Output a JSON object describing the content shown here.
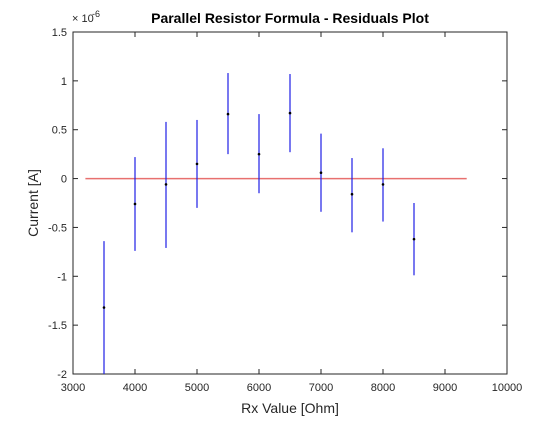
{
  "chart_data": {
    "type": "scatter",
    "title": "Parallel Resistor Formula - Residuals Plot",
    "xlabel": "Rx Value [Ohm]",
    "ylabel": "Current [A]",
    "y_exponent_base": "× 10",
    "y_exponent_power": "-6",
    "xlim": [
      3000,
      10000
    ],
    "ylim": [
      -2,
      1.5
    ],
    "y_scale_note": "y values in units of 1e-6 A",
    "x_ticks": [
      3000,
      4000,
      5000,
      6000,
      7000,
      8000,
      9000,
      10000
    ],
    "x_tick_labels": [
      "3000",
      "4000",
      "5000",
      "6000",
      "7000",
      "8000",
      "9000",
      "10000"
    ],
    "y_ticks": [
      -2,
      -1.5,
      -1,
      -0.5,
      0,
      0.5,
      1,
      1.5
    ],
    "y_tick_labels": [
      "-2",
      "-1.5",
      "-1",
      "-0.5",
      "0",
      "0.5",
      "1",
      "1.5"
    ],
    "grid": false,
    "reference_line": {
      "y": 0,
      "x_start": 3200,
      "x_end": 9350,
      "color": "#e8706f"
    },
    "errorbar_color": "#1f1fe6",
    "point_color": "#000000",
    "series": [
      {
        "x": [
          3500,
          4000,
          4500,
          5000,
          5500,
          6000,
          6500,
          7000,
          7500,
          8000,
          8500
        ],
        "y": [
          -1.32,
          -0.26,
          -0.06,
          0.15,
          0.66,
          0.25,
          0.67,
          0.06,
          -0.16,
          -0.06,
          -0.62
        ],
        "ylow": [
          -2.0,
          -0.74,
          -0.71,
          -0.3,
          0.25,
          -0.15,
          0.27,
          -0.34,
          -0.55,
          -0.44,
          -0.99
        ],
        "yhigh": [
          -0.64,
          0.22,
          0.58,
          0.6,
          1.08,
          0.66,
          1.07,
          0.46,
          0.21,
          0.31,
          -0.25
        ]
      }
    ]
  }
}
